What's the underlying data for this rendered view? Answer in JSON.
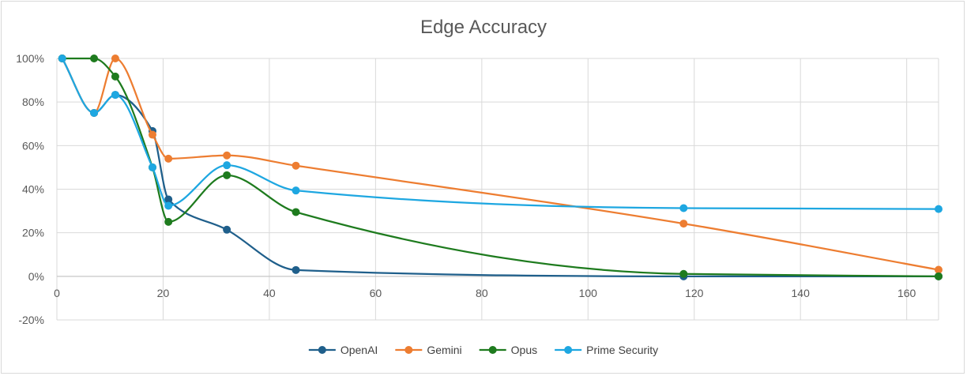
{
  "chart_data": {
    "type": "line",
    "title": "Edge Accuracy",
    "xlabel": "",
    "ylabel": "",
    "xlim": [
      0,
      166
    ],
    "ylim": [
      -20,
      100
    ],
    "x_ticks": [
      0,
      20,
      40,
      60,
      80,
      100,
      120,
      140,
      160
    ],
    "y_ticks": [
      -20,
      0,
      20,
      40,
      60,
      80,
      100
    ],
    "y_tick_labels": [
      "-20%",
      "0%",
      "20%",
      "40%",
      "60%",
      "80%",
      "100%"
    ],
    "grid": true,
    "legend_position": "bottom",
    "smooth": true,
    "series": [
      {
        "name": "OpenAI",
        "color": "#1f5f8b",
        "points": [
          [
            1,
            100
          ],
          [
            7,
            75
          ],
          [
            11,
            83.3
          ],
          [
            18,
            66.7
          ],
          [
            21,
            35.3
          ],
          [
            32,
            21.4
          ],
          [
            45,
            2.9
          ],
          [
            118,
            0
          ],
          [
            166,
            0
          ]
        ]
      },
      {
        "name": "Gemini",
        "color": "#ed7d31",
        "points": [
          [
            1,
            100
          ],
          [
            7,
            75
          ],
          [
            11,
            100
          ],
          [
            18,
            65
          ],
          [
            21,
            54
          ],
          [
            32,
            55.5
          ],
          [
            45,
            50.8
          ],
          [
            118,
            24.2
          ],
          [
            166,
            3
          ]
        ]
      },
      {
        "name": "Opus",
        "color": "#1e7b1e",
        "points": [
          [
            1,
            100
          ],
          [
            7,
            100
          ],
          [
            11,
            91.7
          ],
          [
            18,
            50
          ],
          [
            21,
            25
          ],
          [
            32,
            46.4
          ],
          [
            45,
            29.5
          ],
          [
            118,
            1.1
          ],
          [
            166,
            0
          ]
        ]
      },
      {
        "name": "Prime Security",
        "color": "#1ea7e1",
        "points": [
          [
            1,
            100
          ],
          [
            7,
            75
          ],
          [
            11,
            83.3
          ],
          [
            18,
            50
          ],
          [
            21,
            32.4
          ],
          [
            32,
            51
          ],
          [
            45,
            39.4
          ],
          [
            118,
            31.3
          ],
          [
            166,
            30.9
          ]
        ]
      }
    ]
  }
}
